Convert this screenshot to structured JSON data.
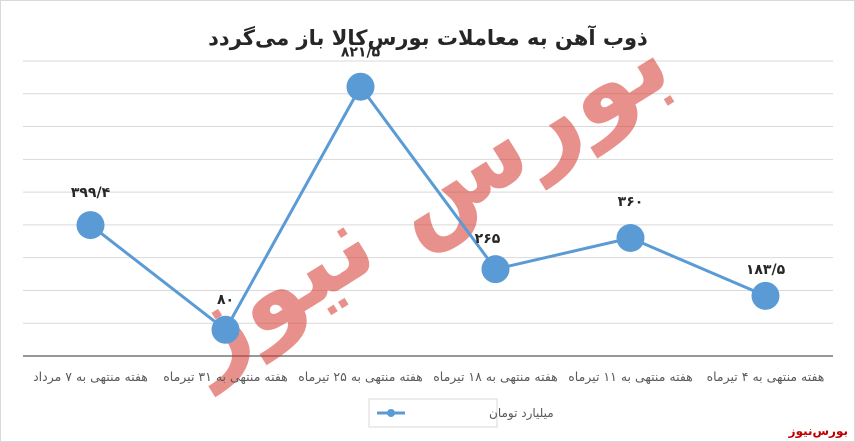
{
  "chart_data": {
    "type": "line",
    "title": "ذوب آهن به معاملات بورس‌کالا باز می‌گردد",
    "x_order": "right-to-left",
    "categories": [
      "هفته منتهی به ۴ تیرماه",
      "هفته منتهی به ۱۱ تیرماه",
      "هفته منتهی به ۱۸ تیرماه",
      "هفته منتهی به ۲۵ تیرماه",
      "هفته منتهی به ۳۱ تیرماه",
      "هفته منتهی به ۷ مرداد"
    ],
    "series": [
      {
        "name": "میلیارد تومان",
        "values": [
          183.5,
          360,
          265,
          821.5,
          80,
          399.4
        ],
        "labels": [
          "۱۸۳/۵",
          "۳۶۰",
          "۲۶۵",
          "۸۲۱/۵",
          "۸۰",
          "۳۹۹/۴"
        ]
      }
    ],
    "ylim": [
      0,
      900
    ],
    "grid": true,
    "legend_position": "bottom",
    "series_color": "#5b9bd5",
    "watermark_color": "#d7382f"
  },
  "watermark": {
    "text": "بورس نیوز"
  },
  "source_tag": "بورس‌نیوز"
}
